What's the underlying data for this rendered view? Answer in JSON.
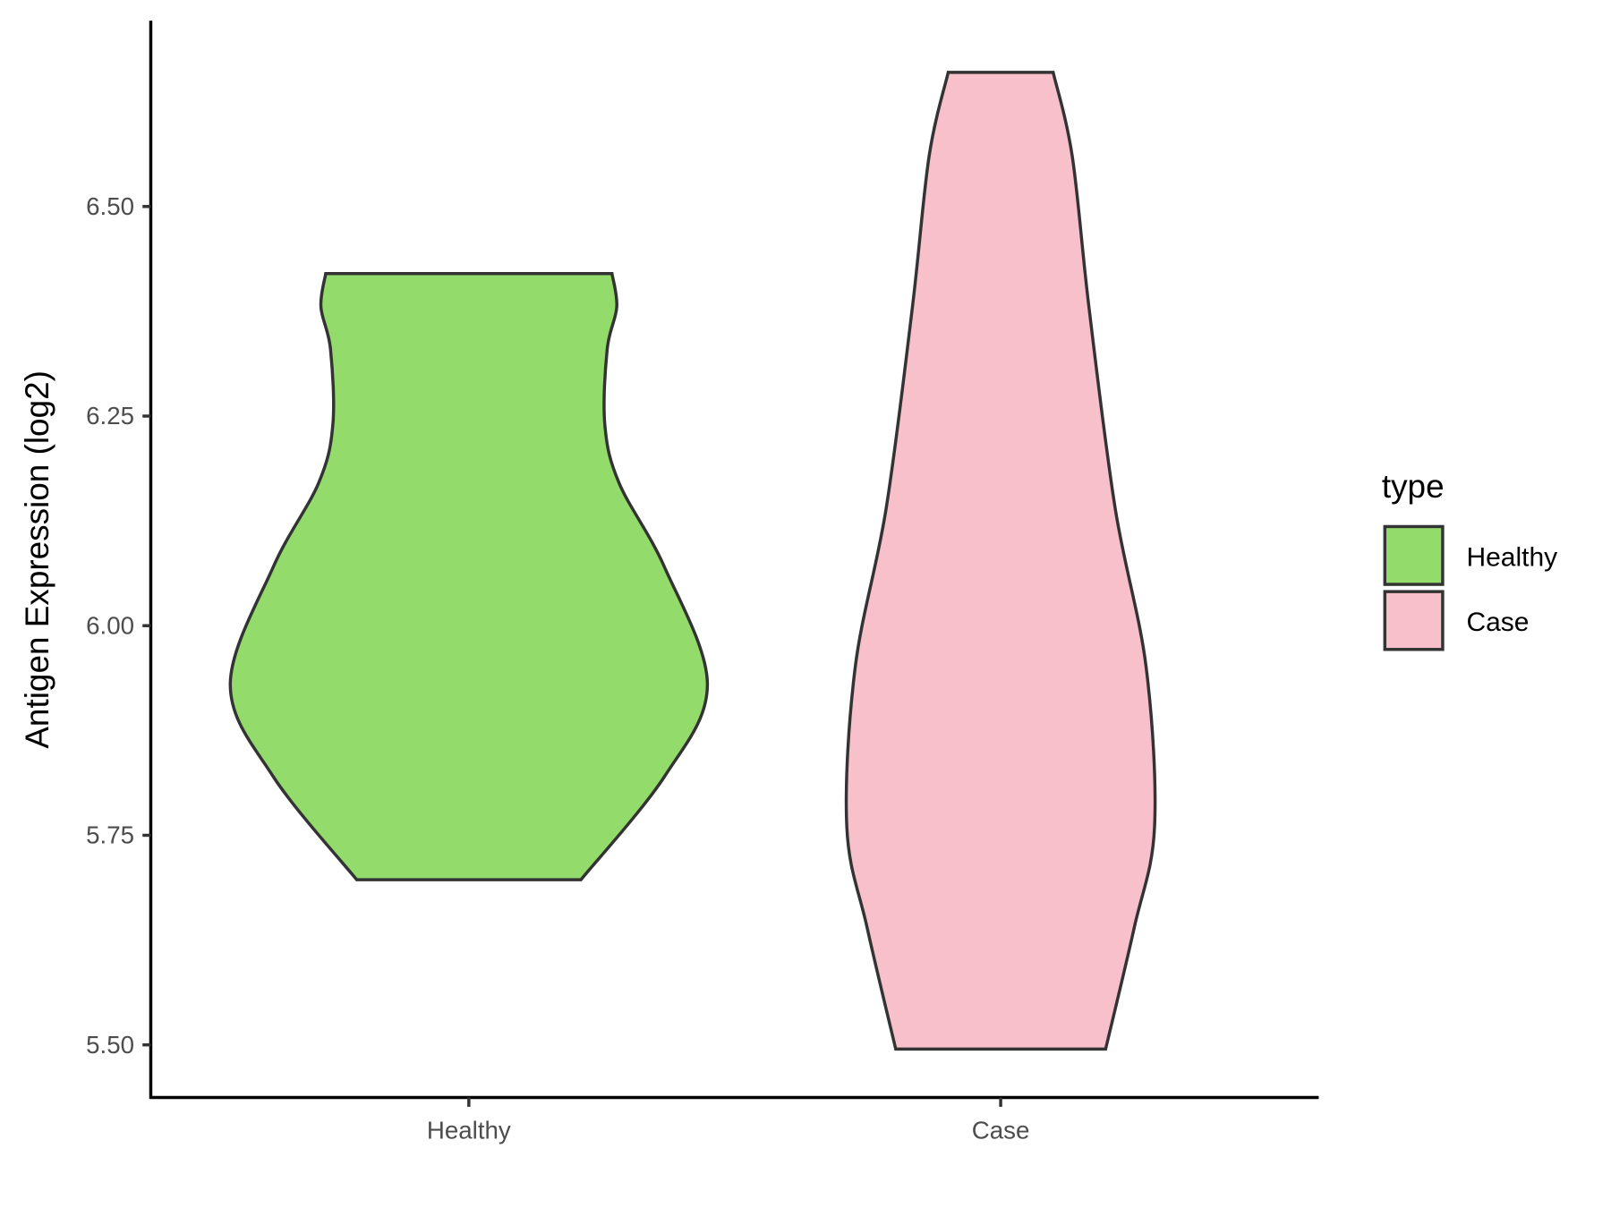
{
  "chart_data": {
    "type": "violin",
    "title": "",
    "xlabel": "",
    "ylabel": "Antigen Expression (log2)",
    "ylim": [
      5.44,
      6.72
    ],
    "yticks": [
      "5.50",
      "5.75",
      "6.00",
      "6.25",
      "6.50"
    ],
    "ytick_values": [
      5.5,
      5.75,
      6.0,
      6.25,
      6.5
    ],
    "categories": [
      "Healthy",
      "Case"
    ],
    "grid": false,
    "legend": {
      "title": "type",
      "position": "right",
      "entries": [
        "Healthy",
        "Case"
      ]
    },
    "series": [
      {
        "name": "Healthy",
        "color": "#93dc6b",
        "min": 5.697,
        "max": 6.42,
        "density_profile": [
          [
            6.42,
            0.6
          ],
          [
            6.38,
            0.62
          ],
          [
            6.33,
            0.58
          ],
          [
            6.24,
            0.57
          ],
          [
            6.17,
            0.63
          ],
          [
            6.07,
            0.82
          ],
          [
            5.93,
            1.0
          ],
          [
            5.82,
            0.82
          ],
          [
            5.697,
            0.47
          ]
        ]
      },
      {
        "name": "Case",
        "color": "#f8c0cb",
        "min": 5.495,
        "max": 6.66,
        "density_profile": [
          [
            6.66,
            0.22
          ],
          [
            6.56,
            0.3
          ],
          [
            6.38,
            0.37
          ],
          [
            6.14,
            0.48
          ],
          [
            5.95,
            0.61
          ],
          [
            5.76,
            0.645
          ],
          [
            5.64,
            0.56
          ],
          [
            5.495,
            0.44
          ]
        ]
      }
    ],
    "outline_color": "#333333"
  }
}
